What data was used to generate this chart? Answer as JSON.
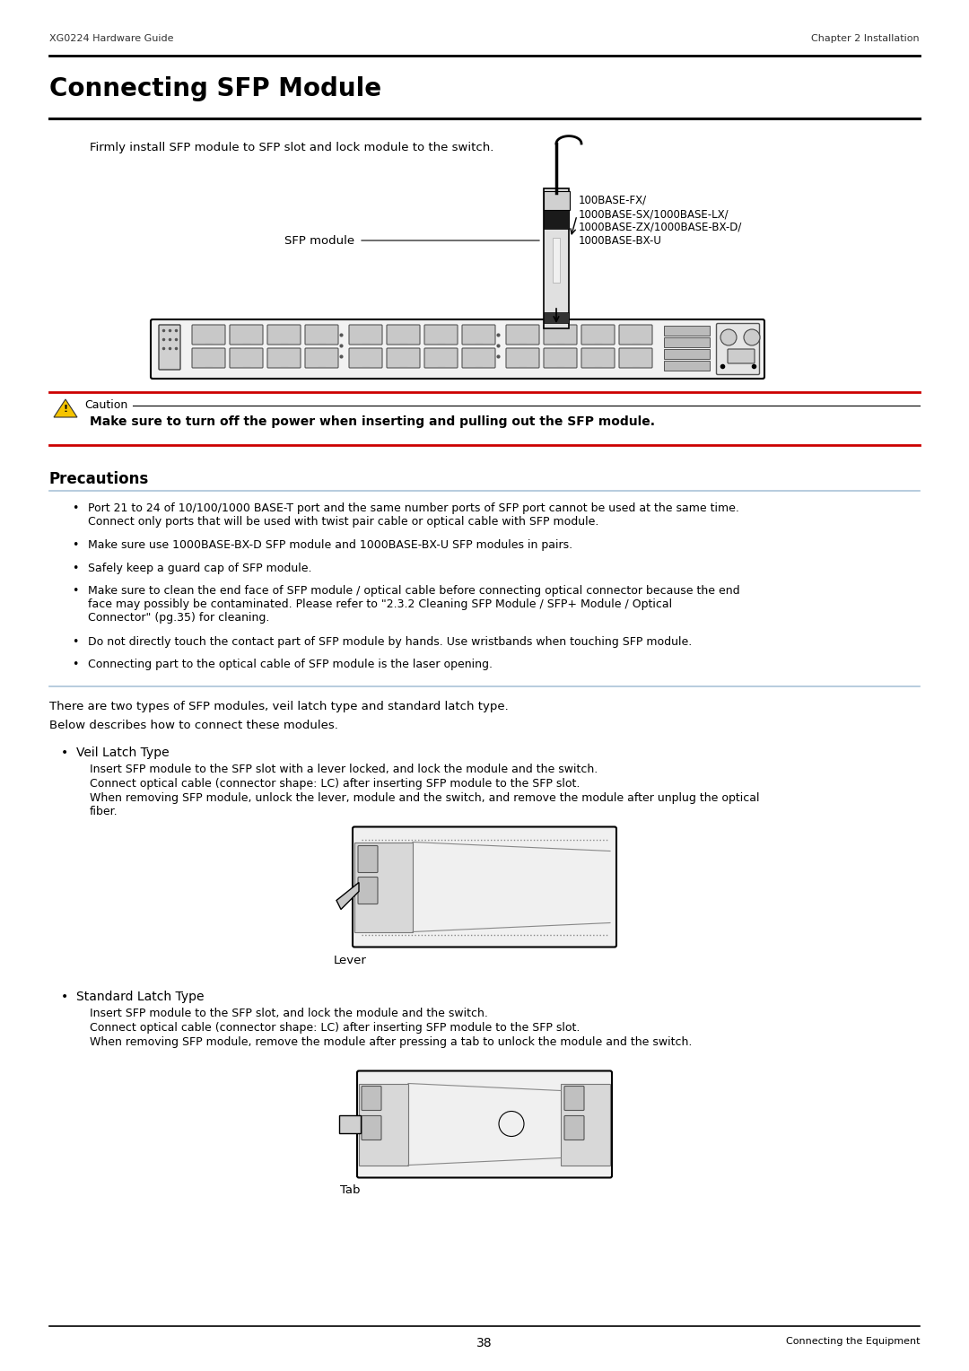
{
  "page_width": 10.8,
  "page_height": 15.28,
  "bg_color": "#ffffff",
  "header_left": "XG0224 Hardware Guide",
  "header_right": "Chapter 2 Installation",
  "footer_center": "38",
  "footer_right": "Connecting the Equipment",
  "title": "Connecting SFP Module",
  "intro_text": "Firmly install SFP module to SFP slot and lock module to the switch.",
  "sfp_label": "SFP module",
  "sfp_types": "100BASE-FX/\n1000BASE-SX/1000BASE-LX/\n1000BASE-ZX/1000BASE-BX-D/\n1000BASE-BX-U",
  "caution_label": "Caution",
  "caution_text": "Make sure to turn off the power when inserting and pulling out the SFP module.",
  "precautions_title": "Precautions",
  "precautions_bullets": [
    "Port 21 to 24 of 10/100/1000 BASE-T port and the same number ports of SFP port cannot be used at the same time.\nConnect only ports that will be used with twist pair cable or optical cable with SFP module.",
    "Make sure use 1000BASE-BX-D SFP module and 1000BASE-BX-U SFP modules in pairs.",
    "Safely keep a guard cap of SFP module.",
    "Make sure to clean the end face of SFP module / optical cable before connecting optical connector because the end\nface may possibly be contaminated. Please refer to \"2.3.2 Cleaning SFP Module / SFP+ Module / Optical\nConnector\" (pg.35) for cleaning.",
    "Do not directly touch the contact part of SFP module by hands. Use wristbands when touching SFP module.",
    "Connecting part to the optical cable of SFP module is the laser opening."
  ],
  "two_types_text": "There are two types of SFP modules, veil latch type and standard latch type.",
  "below_text": "Below describes how to connect these modules.",
  "veil_latch_title": "Veil Latch Type",
  "veil_latch_text1": "Insert SFP module to the SFP slot with a lever locked, and lock the module and the switch.",
  "veil_latch_text2": "Connect optical cable (connector shape: LC) after inserting SFP module to the SFP slot.",
  "veil_latch_text3": "When removing SFP module, unlock the lever, module and the switch, and remove the module after unplug the optical\nfiber.",
  "lever_label": "Lever",
  "standard_latch_title": "Standard Latch Type",
  "standard_latch_text1": "Insert SFP module to the SFP slot, and lock the module and the switch.",
  "standard_latch_text2": "Connect optical cable (connector shape: LC) after inserting SFP module to the SFP slot.",
  "standard_latch_text3": "When removing SFP module, remove the module after pressing a tab to unlock the module and the switch.",
  "tab_label": "Tab",
  "red_color": "#cc0000",
  "precautions_line_color": "#aac4d8",
  "caution_triangle_color": "#f5c400",
  "text_color": "#000000"
}
